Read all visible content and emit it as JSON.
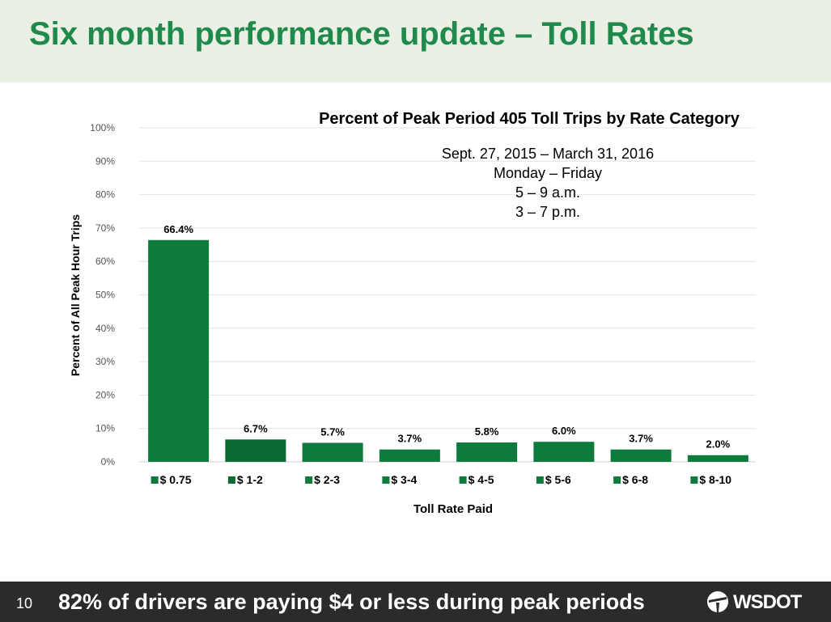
{
  "slide": {
    "title": "Six month performance update – Toll Rates",
    "page_number": "10",
    "footer_text": "82% of drivers are paying $4 or less during peak periods",
    "logo_text": "WSDOT"
  },
  "colors": {
    "header_bg": "#ebf0e4",
    "title": "#1f8a4c",
    "bar": "#0e7a3b",
    "bar_alt": "#0b6a31",
    "footer_bg": "#2b2b2b"
  },
  "chart_data": {
    "type": "bar",
    "title": "Percent of Peak Period 405 Toll Trips by Rate Category",
    "annotation": [
      "Sept. 27, 2015 – March 31, 2016",
      "Monday – Friday",
      "5 – 9 a.m.",
      "3 – 7 p.m."
    ],
    "xlabel": "Toll Rate Paid",
    "ylabel": "Percent of All Peak Hour Trips",
    "ylim": [
      0,
      100
    ],
    "yticks": [
      "0%",
      "10%",
      "20%",
      "30%",
      "40%",
      "50%",
      "60%",
      "70%",
      "80%",
      "90%",
      "100%"
    ],
    "categories": [
      "$ 0.75",
      "$ 1-2",
      "$ 2-3",
      "$ 3-4",
      "$ 4-5",
      "$ 5-6",
      "$ 6-8",
      "$ 8-10"
    ],
    "values": [
      66.4,
      6.7,
      5.7,
      3.7,
      5.8,
      6.0,
      3.7,
      2.0
    ],
    "data_labels": [
      "66.4%",
      "6.7%",
      "5.7%",
      "3.7%",
      "5.8%",
      "6.0%",
      "3.7%",
      "2.0%"
    ],
    "grid": true
  }
}
